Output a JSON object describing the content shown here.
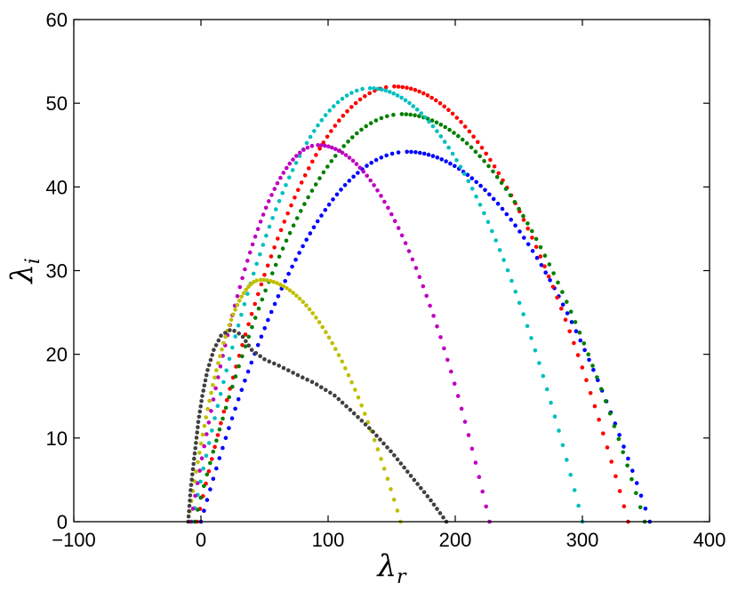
{
  "chart_data": {
    "type": "scatter",
    "title": "",
    "xlabel": "λ",
    "xlabel_sub": "r",
    "ylabel": "λ",
    "ylabel_sub": "i",
    "xlim": [
      -100,
      400
    ],
    "ylim": [
      0,
      60
    ],
    "xticks": [
      -100,
      0,
      100,
      200,
      300,
      400
    ],
    "yticks": [
      0,
      10,
      20,
      30,
      40,
      50,
      60
    ],
    "grid": false,
    "legend": "none",
    "series": [
      {
        "color": "#0000ff",
        "x_start": 0,
        "x_end": 353,
        "peak_x": 162,
        "peak_y": 44.2,
        "points": 110
      },
      {
        "color": "#ff0000",
        "x_start": -3,
        "x_end": 336,
        "peak_x": 152,
        "peak_y": 52.0,
        "points": 110
      },
      {
        "color": "#007f00",
        "x_start": -5,
        "x_end": 349,
        "peak_x": 158,
        "peak_y": 48.7,
        "points": 110
      },
      {
        "color": "#00bfbf",
        "x_start": -7,
        "x_end": 300,
        "peak_x": 133,
        "peak_y": 51.8,
        "points": 105
      },
      {
        "color": "#bf00bf",
        "x_start": -8,
        "x_end": 227,
        "peak_x": 92,
        "peak_y": 45.0,
        "points": 95
      },
      {
        "color": "#bfbf00",
        "x_start": -10,
        "x_end": 157,
        "peak_x": 47,
        "peak_y": 28.9,
        "points": 80
      },
      {
        "color": "#404040",
        "points_xy": [
          [
            -10,
            0
          ],
          [
            -8,
            4
          ],
          [
            -5,
            8
          ],
          [
            -2,
            12
          ],
          [
            1,
            15
          ],
          [
            5,
            18
          ],
          [
            10,
            20.5
          ],
          [
            16,
            22.3
          ],
          [
            24,
            23
          ],
          [
            32,
            22.3
          ],
          [
            40,
            20.5
          ],
          [
            50,
            19.4
          ],
          [
            62,
            18.6
          ],
          [
            75,
            17.6
          ],
          [
            90,
            16.5
          ],
          [
            105,
            15.1
          ],
          [
            120,
            13
          ],
          [
            135,
            10.8
          ],
          [
            150,
            8.3
          ],
          [
            165,
            5.5
          ],
          [
            180,
            2.7
          ],
          [
            193,
            0
          ]
        ],
        "points": 95
      }
    ]
  }
}
